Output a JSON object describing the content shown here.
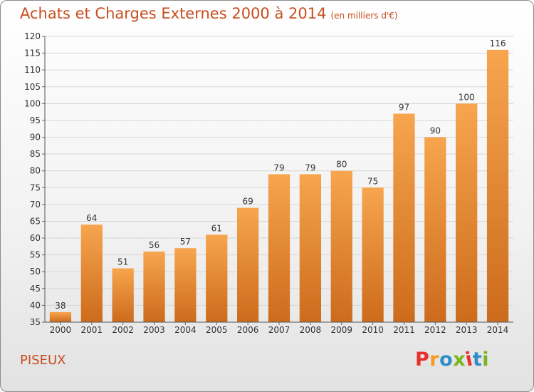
{
  "chart_data": {
    "type": "bar",
    "title": "Achats et Charges Externes 2000 à 2014",
    "subtitle": "(en milliers d'€)",
    "categories": [
      "2000",
      "2001",
      "2002",
      "2003",
      "2004",
      "2005",
      "2006",
      "2007",
      "2008",
      "2009",
      "2010",
      "2011",
      "2012",
      "2013",
      "2014"
    ],
    "values": [
      38,
      64,
      51,
      56,
      57,
      61,
      69,
      79,
      79,
      80,
      75,
      97,
      90,
      100,
      116
    ],
    "xlabel": "",
    "ylabel": "",
    "ylim": [
      35,
      120
    ],
    "yticks": [
      35,
      40,
      45,
      50,
      55,
      60,
      65,
      70,
      75,
      80,
      85,
      90,
      95,
      100,
      105,
      110,
      115,
      120
    ],
    "grid": "horizontal",
    "bar_color": "#f0923a"
  },
  "footer": {
    "commune": "PISEUX",
    "logo_text": "Proxiti"
  },
  "colors": {
    "title": "#c84d1e",
    "logo": [
      "#e8302c",
      "#f39a1f",
      "#2d8ec9",
      "#7ab51d",
      "#e8302c",
      "#2d8ec9",
      "#7ab51d"
    ]
  }
}
